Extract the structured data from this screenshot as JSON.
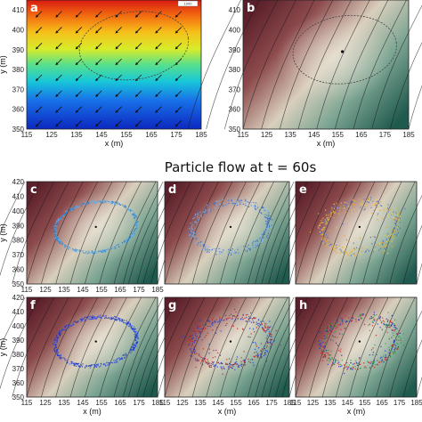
{
  "figure": {
    "title": "Particle flow at t = 60s"
  },
  "chart_data": [
    {
      "panel": "a",
      "type": "heatmap",
      "xlabel": "x (m)",
      "ylabel": "y (m)",
      "xlim": [
        115,
        185
      ],
      "ylim": [
        350,
        415
      ],
      "xticks": [
        115,
        125,
        135,
        145,
        155,
        165,
        175,
        185
      ],
      "yticks": [
        350,
        360,
        370,
        380,
        390,
        400,
        410
      ],
      "colormap": "jet",
      "gradient": "red at top to blue at bottom",
      "vectors": {
        "direction": "down-left",
        "rows_y": [
          408,
          400,
          392,
          384,
          376,
          368,
          360,
          353
        ],
        "cols_x": [
          120,
          128,
          136,
          144,
          152,
          160,
          168,
          176
        ]
      },
      "ellipse": {
        "cx": 158,
        "cy": 392,
        "rx": 22,
        "ry": 17
      },
      "colorbar_label": "1000"
    },
    {
      "panel": "b",
      "type": "heatmap",
      "xlabel": "x (m)",
      "ylabel": "",
      "xlim": [
        115,
        185
      ],
      "ylim": [
        350,
        415
      ],
      "xticks": [
        115,
        125,
        135,
        145,
        155,
        165,
        175,
        185
      ],
      "yticks": [
        350,
        360,
        370,
        380,
        390,
        400,
        410
      ],
      "background": "maroon-to-beige-to-teal gradient with diagonal contour lines",
      "ellipse": {
        "cx": 158,
        "cy": 390,
        "rx": 22,
        "ry": 17
      },
      "center_point": [
        157,
        389
      ]
    },
    {
      "panel": "c",
      "type": "scatter",
      "ylabel": "y (m)",
      "xlim": [
        115,
        185
      ],
      "ylim": [
        350,
        420
      ],
      "xticks": [
        115,
        125,
        135,
        145,
        155,
        165,
        175,
        185
      ],
      "yticks": [
        350,
        360,
        370,
        380,
        390,
        400,
        410,
        420
      ],
      "ellipse": {
        "cx": 152,
        "cy": 389,
        "rx": 22,
        "ry": 17
      },
      "particle_colors": [
        "#2a7fd4",
        "#5fb0ee"
      ]
    },
    {
      "panel": "d",
      "type": "scatter",
      "xlim": [
        115,
        185
      ],
      "ylim": [
        350,
        420
      ],
      "ellipse": {
        "cx": 152,
        "cy": 389,
        "rx": 22,
        "ry": 17
      },
      "particle_colors": [
        "#3a6fd0",
        "#7fb6e8"
      ]
    },
    {
      "panel": "e",
      "type": "scatter",
      "xlim": [
        115,
        185
      ],
      "ylim": [
        350,
        420
      ],
      "ellipse": {
        "cx": 152,
        "cy": 389,
        "rx": 22,
        "ry": 17
      },
      "particle_colors": [
        "#f0a020",
        "#e8d040",
        "#4a6fd0"
      ]
    },
    {
      "panel": "f",
      "type": "scatter",
      "ylabel": "y (m)",
      "xlabel": "x (m)",
      "xlim": [
        115,
        185
      ],
      "ylim": [
        350,
        420
      ],
      "xticks": [
        115,
        125,
        135,
        145,
        155,
        165,
        175,
        185
      ],
      "yticks": [
        350,
        360,
        370,
        380,
        390,
        400,
        410,
        420
      ],
      "ellipse": {
        "cx": 152,
        "cy": 389,
        "rx": 22,
        "ry": 17
      },
      "particle_colors": [
        "#1a2fc8",
        "#3050e0"
      ]
    },
    {
      "panel": "g",
      "type": "scatter",
      "xlabel": "x (m)",
      "xlim": [
        115,
        185
      ],
      "ylim": [
        350,
        420
      ],
      "xticks": [
        115,
        125,
        135,
        145,
        155,
        165,
        175,
        185
      ],
      "ellipse": {
        "cx": 152,
        "cy": 389,
        "rx": 22,
        "ry": 17
      },
      "particle_colors": [
        "#2040d0",
        "#c02020"
      ]
    },
    {
      "panel": "h",
      "type": "scatter",
      "xlabel": "x (m)",
      "xlim": [
        115,
        185
      ],
      "ylim": [
        350,
        420
      ],
      "xticks": [
        115,
        125,
        135,
        145,
        155,
        165,
        175,
        185
      ],
      "ellipse": {
        "cx": 152,
        "cy": 389,
        "rx": 22,
        "ry": 17
      },
      "particle_colors": [
        "#1a2fc8",
        "#20a040",
        "#d02020"
      ]
    }
  ]
}
